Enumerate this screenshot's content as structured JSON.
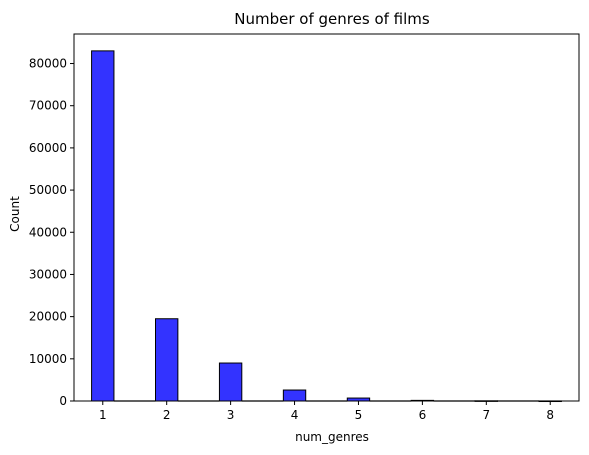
{
  "chart_data": {
    "type": "bar",
    "title": "Number of genres of films",
    "xlabel": "num_genres",
    "ylabel": "Count",
    "categories": [
      "1",
      "2",
      "3",
      "4",
      "5",
      "6",
      "7",
      "8"
    ],
    "values": [
      83000,
      19500,
      9000,
      2600,
      700,
      150,
      50,
      20
    ],
    "ylim": [
      0,
      87000
    ],
    "xlim": [
      0.55,
      8.45
    ],
    "bin_width": 0.35,
    "y_ticks": [
      0,
      10000,
      20000,
      30000,
      40000,
      50000,
      60000,
      70000,
      80000
    ],
    "y_tick_labels": [
      "0",
      "10000",
      "20000",
      "30000",
      "40000",
      "50000",
      "60000",
      "70000",
      "80000"
    ],
    "x_ticks": [
      1,
      2,
      3,
      4,
      5,
      6,
      7,
      8
    ],
    "x_tick_labels": [
      "1",
      "2",
      "3",
      "4",
      "5",
      "6",
      "7",
      "8"
    ],
    "bar_color": "#3333ff",
    "bar_edge_color": "#000000",
    "grid": false,
    "legend": "none"
  }
}
